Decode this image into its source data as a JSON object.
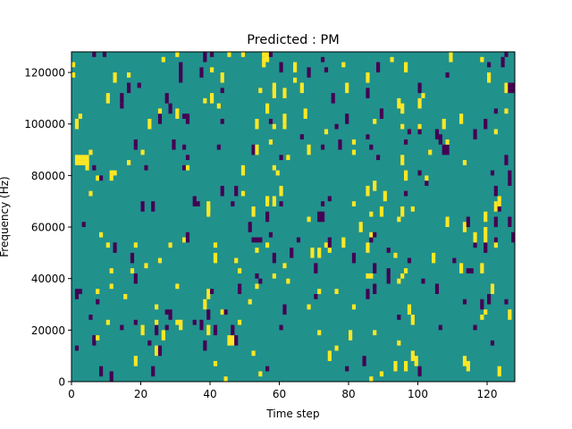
{
  "chart_data": {
    "type": "heatmap",
    "title": "Predicted : PM",
    "xlabel": "Time step",
    "ylabel": "Frequency (Hz)",
    "xlim": [
      0,
      128
    ],
    "ylim": [
      0,
      128000
    ],
    "x_ticks": [
      0,
      20,
      40,
      60,
      80,
      100,
      120
    ],
    "x_tick_labels": [
      "0",
      "20",
      "40",
      "60",
      "80",
      "100",
      "120"
    ],
    "y_ticks": [
      0,
      20000,
      40000,
      60000,
      80000,
      100000,
      120000
    ],
    "y_tick_labels": [
      "0",
      "20000",
      "40000",
      "60000",
      "80000",
      "100000",
      "120000"
    ],
    "n_time_steps": 128,
    "n_freq_bins": 128,
    "freq_bin_width_hz": 1000,
    "colormap": "viridis",
    "grid": false,
    "legend": "none",
    "value_levels": [
      -1,
      0,
      1
    ],
    "level_colors": {
      "-1": "#440154",
      "0": "#21918c",
      "1": "#fde725"
    },
    "background_value": 0,
    "notable_cells": [
      {
        "t": 2,
        "f_khz": 86,
        "value": 1
      },
      {
        "t": 2,
        "f_khz": 84,
        "value": 1
      },
      {
        "t": 3,
        "f_khz": 86,
        "value": 1
      },
      {
        "t": 3,
        "f_khz": 84,
        "value": 1
      },
      {
        "t": 4,
        "f_khz": 86,
        "value": 1
      },
      {
        "t": 4,
        "f_khz": 84,
        "value": 1
      },
      {
        "t": 126,
        "f_khz": 114,
        "value": -1
      },
      {
        "t": 127,
        "f_khz": 114,
        "value": -1
      },
      {
        "t": 126,
        "f_khz": 112,
        "value": -1
      },
      {
        "t": 127,
        "f_khz": 112,
        "value": -1
      },
      {
        "t": 71,
        "f_khz": 64,
        "value": -1
      },
      {
        "t": 72,
        "f_khz": 64,
        "value": -1
      },
      {
        "t": 71,
        "f_khz": 62,
        "value": -1
      },
      {
        "t": 72,
        "f_khz": 62,
        "value": -1
      },
      {
        "t": 114,
        "f_khz": 42,
        "value": -1
      },
      {
        "t": 115,
        "f_khz": 42,
        "value": -1
      },
      {
        "t": 52,
        "f_khz": 54,
        "value": -1
      },
      {
        "t": 53,
        "f_khz": 54,
        "value": -1
      },
      {
        "t": 54,
        "f_khz": 54,
        "value": -1
      }
    ]
  }
}
